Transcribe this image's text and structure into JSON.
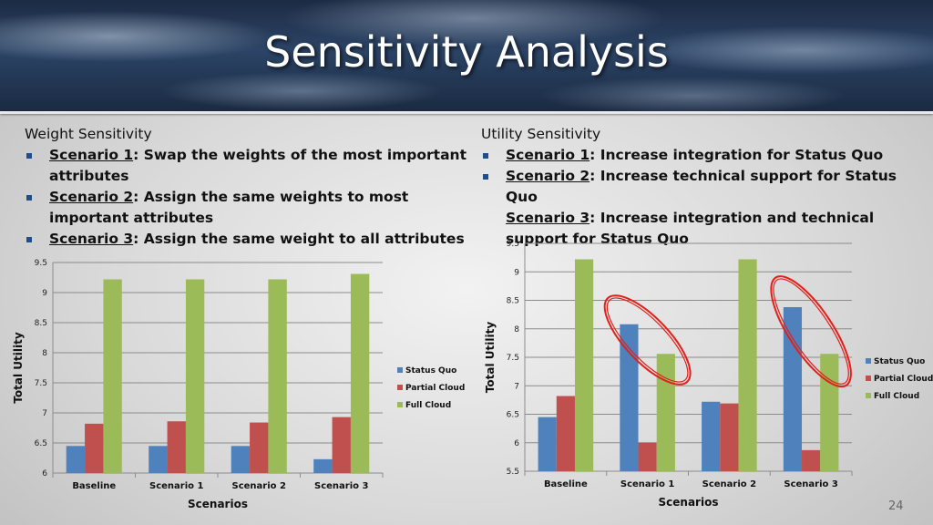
{
  "slide": {
    "title": "Sensitivity Analysis",
    "page_number": "24"
  },
  "left_text": {
    "heading": "Weight Sensitivity",
    "bullets": [
      {
        "scenario": "Scenario 1",
        "text": ": Swap the weights of the most important attributes"
      },
      {
        "scenario": "Scenario 2",
        "text": ": Assign the same weights to most important attributes"
      },
      {
        "scenario": "Scenario 3",
        "text": ": Assign the same weight to all attributes"
      }
    ]
  },
  "right_text": {
    "heading": "Utility Sensitivity",
    "bullets": [
      {
        "scenario": "Scenario 1",
        "text": ": Increase integration for Status Quo"
      },
      {
        "scenario": "Scenario 2",
        "text": ": Increase technical support for Status Quo"
      },
      {
        "scenario": "Scenario 3",
        "text": ": Increase integration and technical support for Status Quo"
      }
    ]
  },
  "colors": {
    "status_quo": "#4f81bd",
    "partial_cloud": "#c0504d",
    "full_cloud": "#9bbb59",
    "highlight_ellipse": "#e0201b"
  },
  "chart_data": [
    {
      "type": "bar",
      "categories": [
        "Baseline",
        "Scenario 1",
        "Scenario 2",
        "Scenario 3"
      ],
      "series": [
        {
          "name": "Status Quo",
          "values": [
            6.45,
            6.45,
            6.45,
            6.23
          ]
        },
        {
          "name": "Partial Cloud",
          "values": [
            6.82,
            6.86,
            6.84,
            6.93
          ]
        },
        {
          "name": "Full Cloud",
          "values": [
            9.22,
            9.22,
            9.22,
            9.31
          ]
        }
      ],
      "xlabel": "Scenarios",
      "ylabel": "Total Utility",
      "ylim": [
        6,
        9.5
      ],
      "yticks": [
        "6",
        "6.5",
        "7",
        "7.5",
        "8",
        "8.5",
        "9",
        "9.5"
      ],
      "grid": true,
      "legend": "right",
      "highlights": []
    },
    {
      "type": "bar",
      "categories": [
        "Baseline",
        "Scenario 1",
        "Scenario 2",
        "Scenario 3"
      ],
      "series": [
        {
          "name": "Status Quo",
          "values": [
            6.45,
            8.08,
            6.72,
            8.38
          ]
        },
        {
          "name": "Partial Cloud",
          "values": [
            6.82,
            6.0,
            6.69,
            5.87
          ]
        },
        {
          "name": "Full Cloud",
          "values": [
            9.22,
            7.56,
            9.22,
            7.56
          ]
        }
      ],
      "xlabel": "Scenarios",
      "ylabel": "Total Utility",
      "ylim": [
        5.5,
        9.5
      ],
      "yticks": [
        "5.5",
        "6",
        "6.5",
        "7",
        "7.5",
        "8",
        "8.5",
        "9",
        "9.5"
      ],
      "grid": true,
      "legend": "right",
      "highlights": [
        "Scenario 1",
        "Scenario 3"
      ]
    }
  ]
}
